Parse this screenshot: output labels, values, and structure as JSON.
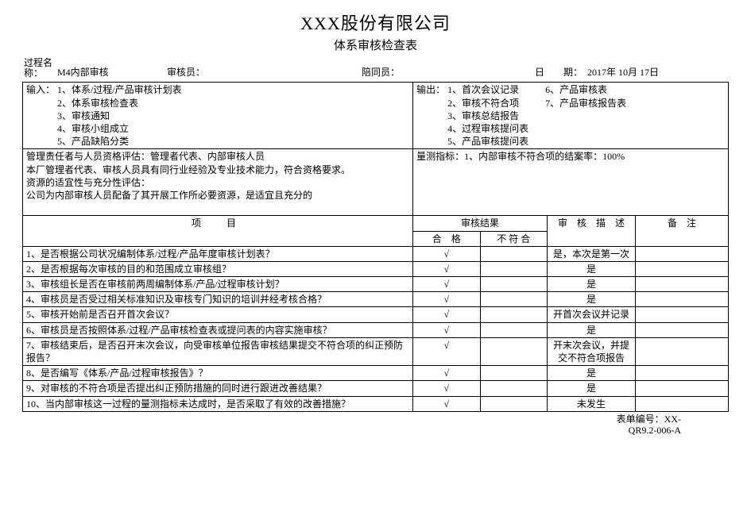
{
  "doc": {
    "company": "XXX股份有限公司",
    "subtitle": "体系审核检查表"
  },
  "meta": {
    "process_label": "过程名\n称：",
    "process_value": "M4内部审核",
    "auditor_label": "审核员：",
    "auditor_value": "",
    "escort_label": "陪同员：",
    "escort_value": "",
    "date_label": "日　　期：",
    "date_value": "2017年 10月  17日"
  },
  "io": {
    "input_label": "输入：",
    "inputs": [
      "1、体系/过程/产品审核计划表",
      "2、体系审核检查表",
      "3、审核通知",
      "4、审核小组成立",
      "5、产品缺陷分类"
    ],
    "output_label": "输出：",
    "outputs_col1": [
      "1、首次会议记录",
      "2、审核不符合项",
      "3、审核总结报告",
      "4、过程审核提问表",
      "5、产品审核提问表"
    ],
    "outputs_col2": [
      "6、产品审核表",
      "7、产品审核报告表"
    ]
  },
  "mgmt": {
    "text": "管理责任者与人员资格评估：管理者代表、内部审核人员\n本厂管理者代表、审核人员具有同行业经验及专业技术能力，符合资格要求。\n资源的适宜性与充分性评估：\n公司为内部审核人员配备了其开展工作所必要资源，是适宜且充分的"
  },
  "metric": {
    "text": "量测指标：1、内部审核不符合项的结案率：100%"
  },
  "headers": {
    "item": "项　目",
    "result": "审核结果",
    "pass": "合　格",
    "fail": "不 符 合",
    "desc": "审　核　描　述",
    "note": "备　注"
  },
  "rows": [
    {
      "item": "1、是否根据公司状况编制体系/过程/产品年度审核计划表？",
      "pass": "√",
      "fail": "",
      "desc": "是，本次是第一次",
      "note": ""
    },
    {
      "item": "2、是否根据每次审核的目的和范围成立审核组？",
      "pass": "√",
      "fail": "",
      "desc": "是",
      "note": ""
    },
    {
      "item": "3、审核组长是否在审核前两周编制体系/产品/过程审核计划？",
      "pass": "√",
      "fail": "",
      "desc": "是",
      "note": ""
    },
    {
      "item": "4、审核员是否受过相关标准知识及审核专门知识的培训并经考核合格？",
      "pass": "√",
      "fail": "",
      "desc": "是",
      "note": ""
    },
    {
      "item": "5、审核开始前是否召开首次会议？",
      "pass": "√",
      "fail": "",
      "desc": "开首次会议并记录",
      "note": ""
    },
    {
      "item": "6、审核员是否按照体系/过程/产品审核检查表或提问表的内容实施审核？",
      "pass": "√",
      "fail": "",
      "desc": "是",
      "note": ""
    },
    {
      "item": "7、审核结束后，是否召开末次会议，向受审核单位报告审核结果提交不符合项的纠正预防报告？",
      "pass": "√",
      "fail": "",
      "desc": "开末次会议，并提交不符合项报告",
      "note": ""
    },
    {
      "item": "8、是否编写《体系/产品/过程审核报告》？",
      "pass": "√",
      "fail": "",
      "desc": "是",
      "note": ""
    },
    {
      "item": "9、对审核的不符合项是否提出纠正预防措施的同时进行跟进改善结果？",
      "pass": "√",
      "fail": "",
      "desc": "是",
      "note": ""
    },
    {
      "item": "10、当内部审核这一过程的量测指标未达成时，是否采取了有效的改善措施？",
      "pass": "√",
      "fail": "",
      "desc": "未发生",
      "note": ""
    }
  ],
  "footer": {
    "label": "表单编号：",
    "code1": "XX-",
    "code2": "QR9.2-006-A"
  }
}
